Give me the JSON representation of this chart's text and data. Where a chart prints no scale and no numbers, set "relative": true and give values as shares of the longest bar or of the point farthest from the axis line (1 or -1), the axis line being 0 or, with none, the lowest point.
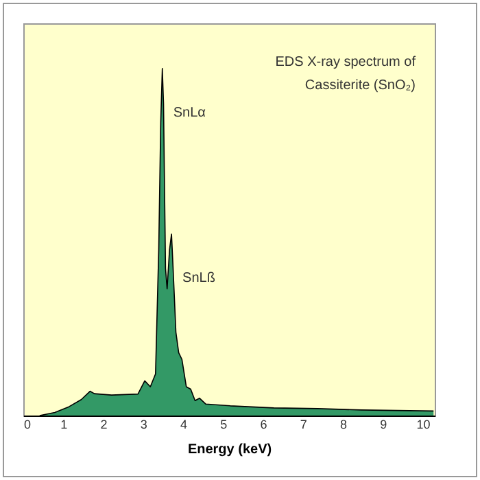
{
  "chart_data": {
    "type": "area",
    "title": "EDS X-ray spectrum of\nCassiterite (SnO₂)",
    "xlabel": "Energy (keV)",
    "relative": true,
    "xlim": [
      0,
      10.3
    ],
    "xticks": [
      0,
      1,
      2,
      3,
      4,
      5,
      6,
      7,
      8,
      9,
      10
    ],
    "x": [
      0.41,
      0.79,
      1.12,
      1.45,
      1.67,
      1.78,
      2.21,
      2.87,
      3.04,
      3.18,
      3.31,
      3.39,
      3.44,
      3.48,
      3.51,
      3.56,
      3.6,
      3.66,
      3.71,
      3.75,
      3.82,
      3.89,
      3.97,
      4.08,
      4.19,
      4.3,
      4.41,
      4.57,
      5.18,
      6.27,
      7.37,
      8.46,
      10.27
    ],
    "series": [
      {
        "color": "#339966",
        "values": [
          0,
          0.009,
          0.024,
          0.046,
          0.07,
          0.063,
          0.059,
          0.062,
          0.1,
          0.083,
          0.12,
          0.477,
          0.845,
          1,
          0.9,
          0.424,
          0.365,
          0.477,
          0.523,
          0.424,
          0.24,
          0.181,
          0.162,
          0.083,
          0.076,
          0.043,
          0.05,
          0.033,
          0.028,
          0.022,
          0.02,
          0.016,
          0.013
        ]
      }
    ],
    "annotations": [
      {
        "text": "SnLα",
        "x": 3.48,
        "y": 1
      },
      {
        "text": "SnLß",
        "x": 3.71,
        "y": 0.523
      }
    ]
  }
}
